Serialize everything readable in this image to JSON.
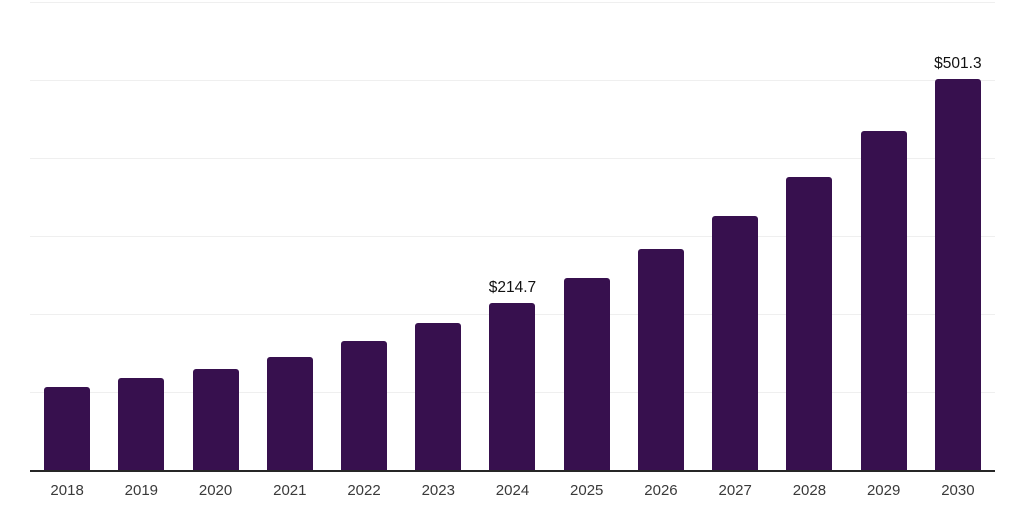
{
  "chart_data": {
    "type": "bar",
    "title": "",
    "xlabel": "",
    "ylabel": "",
    "categories": [
      "2018",
      "2019",
      "2020",
      "2021",
      "2022",
      "2023",
      "2024",
      "2025",
      "2026",
      "2027",
      "2028",
      "2029",
      "2030"
    ],
    "values": [
      106.3,
      117.9,
      129.4,
      144.8,
      165.2,
      188.3,
      214.7,
      246.1,
      283.2,
      325.5,
      375.4,
      434.6,
      501.3
    ],
    "point_labels": [
      "",
      "",
      "",
      "",
      "",
      "",
      "$214.7",
      "",
      "",
      "",
      "",
      "",
      "$501.3"
    ],
    "ylim": [
      0,
      600
    ],
    "gridline_values": [
      100,
      200,
      300,
      400,
      500,
      600
    ],
    "grid": "horizontal",
    "legend": "none",
    "y_axis_labels_shown": false,
    "colors": {
      "bar": "#37104E",
      "gridline": "#efefef",
      "axis_line": "#262626",
      "category_label": "#3a3a3a",
      "data_label": "#111111",
      "background": "#ffffff"
    }
  }
}
